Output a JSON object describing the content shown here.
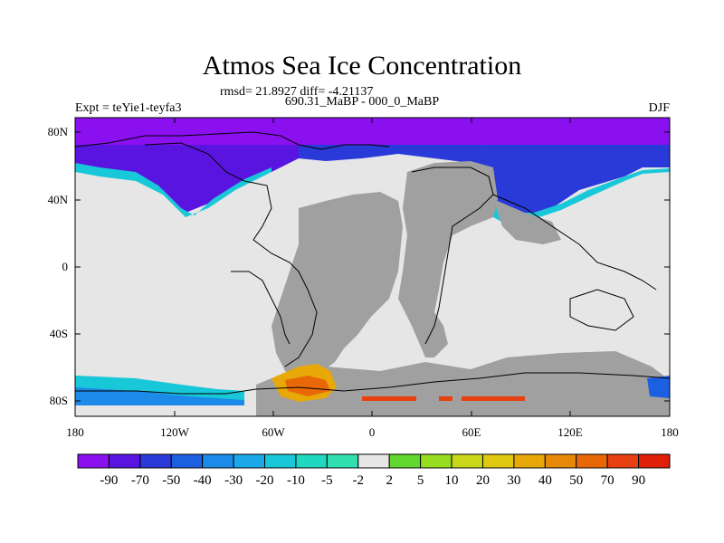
{
  "title": "Atmos Sea Ice Concentration",
  "stats": "rmsd= 21.8927 diff= -4.21137",
  "subtitle": "690.31_MaBP - 000_0_MaBP",
  "left_label": "Expt = teYie1-teyfa3",
  "right_label": "DJF",
  "lat_labels": [
    "80N",
    "40N",
    "0",
    "40S",
    "80S"
  ],
  "lon_labels": [
    "180",
    "120W",
    "60W",
    "0",
    "60E",
    "120E",
    "180"
  ],
  "colorbar": {
    "labels": [
      "-90",
      "-70",
      "-50",
      "-40",
      "-30",
      "-20",
      "-10",
      "-5",
      "-2",
      "2",
      "5",
      "10",
      "20",
      "30",
      "40",
      "50",
      "70",
      "90"
    ],
    "colors": [
      "#8a10f0",
      "#5a14e0",
      "#2a3ad8",
      "#1a60e0",
      "#1c8ae8",
      "#1aa8e8",
      "#18c8d8",
      "#20d8c0",
      "#30e0b0",
      "#e6e6e6",
      "#60d830",
      "#98dc20",
      "#c8d818",
      "#e0c810",
      "#e8a808",
      "#e88808",
      "#e86808",
      "#e84010",
      "#e02008"
    ]
  },
  "map_colors": {
    "land": "#a0a0a0",
    "ocean_no_change": "#e6e6e6",
    "arctic_ice": "#8a10f0"
  }
}
